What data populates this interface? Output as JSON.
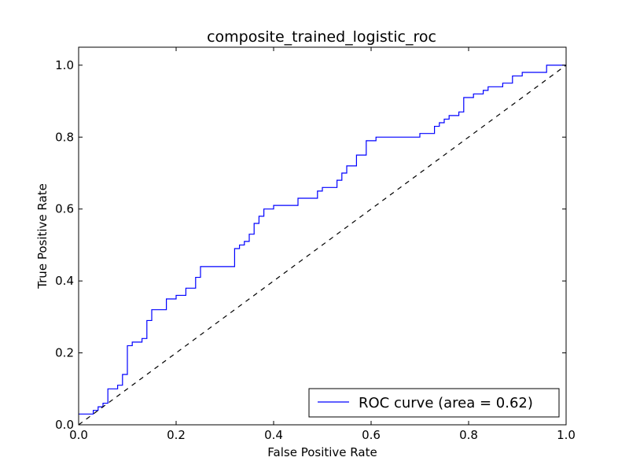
{
  "chart_data": {
    "type": "line",
    "title": "composite_trained_logistic_roc",
    "xlabel": "False Positive Rate",
    "ylabel": "True Positive Rate",
    "xlim": [
      0.0,
      1.0
    ],
    "ylim": [
      0.0,
      1.05
    ],
    "x_ticks": [
      "0.0",
      "0.2",
      "0.4",
      "0.6",
      "0.8",
      "1.0"
    ],
    "y_ticks": [
      "0.0",
      "0.2",
      "0.4",
      "0.6",
      "0.8",
      "1.0"
    ],
    "grid": false,
    "legend_position": "bottom-right",
    "series": [
      {
        "name": "ROC curve (area = 0.62)",
        "color": "#0000ff",
        "style": "solid-step",
        "points": [
          [
            0.0,
            0.03
          ],
          [
            0.03,
            0.03
          ],
          [
            0.03,
            0.04
          ],
          [
            0.04,
            0.04
          ],
          [
            0.04,
            0.05
          ],
          [
            0.05,
            0.05
          ],
          [
            0.05,
            0.06
          ],
          [
            0.06,
            0.06
          ],
          [
            0.06,
            0.1
          ],
          [
            0.08,
            0.1
          ],
          [
            0.08,
            0.11
          ],
          [
            0.09,
            0.11
          ],
          [
            0.09,
            0.14
          ],
          [
            0.1,
            0.14
          ],
          [
            0.1,
            0.22
          ],
          [
            0.11,
            0.22
          ],
          [
            0.11,
            0.23
          ],
          [
            0.13,
            0.23
          ],
          [
            0.13,
            0.24
          ],
          [
            0.14,
            0.24
          ],
          [
            0.14,
            0.29
          ],
          [
            0.15,
            0.29
          ],
          [
            0.15,
            0.32
          ],
          [
            0.18,
            0.32
          ],
          [
            0.18,
            0.35
          ],
          [
            0.2,
            0.35
          ],
          [
            0.2,
            0.36
          ],
          [
            0.22,
            0.36
          ],
          [
            0.22,
            0.38
          ],
          [
            0.24,
            0.38
          ],
          [
            0.24,
            0.41
          ],
          [
            0.25,
            0.41
          ],
          [
            0.25,
            0.44
          ],
          [
            0.32,
            0.44
          ],
          [
            0.32,
            0.49
          ],
          [
            0.33,
            0.49
          ],
          [
            0.33,
            0.5
          ],
          [
            0.34,
            0.5
          ],
          [
            0.34,
            0.51
          ],
          [
            0.35,
            0.51
          ],
          [
            0.35,
            0.53
          ],
          [
            0.36,
            0.53
          ],
          [
            0.36,
            0.56
          ],
          [
            0.37,
            0.56
          ],
          [
            0.37,
            0.58
          ],
          [
            0.38,
            0.58
          ],
          [
            0.38,
            0.6
          ],
          [
            0.4,
            0.6
          ],
          [
            0.4,
            0.61
          ],
          [
            0.45,
            0.61
          ],
          [
            0.45,
            0.63
          ],
          [
            0.49,
            0.63
          ],
          [
            0.49,
            0.65
          ],
          [
            0.5,
            0.65
          ],
          [
            0.5,
            0.66
          ],
          [
            0.53,
            0.66
          ],
          [
            0.53,
            0.68
          ],
          [
            0.54,
            0.68
          ],
          [
            0.54,
            0.7
          ],
          [
            0.55,
            0.7
          ],
          [
            0.55,
            0.72
          ],
          [
            0.57,
            0.72
          ],
          [
            0.57,
            0.75
          ],
          [
            0.59,
            0.75
          ],
          [
            0.59,
            0.79
          ],
          [
            0.61,
            0.79
          ],
          [
            0.61,
            0.8
          ],
          [
            0.7,
            0.8
          ],
          [
            0.7,
            0.81
          ],
          [
            0.73,
            0.81
          ],
          [
            0.73,
            0.83
          ],
          [
            0.74,
            0.83
          ],
          [
            0.74,
            0.84
          ],
          [
            0.75,
            0.84
          ],
          [
            0.75,
            0.85
          ],
          [
            0.76,
            0.85
          ],
          [
            0.76,
            0.86
          ],
          [
            0.78,
            0.86
          ],
          [
            0.78,
            0.87
          ],
          [
            0.79,
            0.87
          ],
          [
            0.79,
            0.91
          ],
          [
            0.81,
            0.91
          ],
          [
            0.81,
            0.92
          ],
          [
            0.83,
            0.92
          ],
          [
            0.83,
            0.93
          ],
          [
            0.84,
            0.93
          ],
          [
            0.84,
            0.94
          ],
          [
            0.87,
            0.94
          ],
          [
            0.87,
            0.95
          ],
          [
            0.89,
            0.95
          ],
          [
            0.89,
            0.97
          ],
          [
            0.91,
            0.97
          ],
          [
            0.91,
            0.98
          ],
          [
            0.96,
            0.98
          ],
          [
            0.96,
            1.0
          ],
          [
            1.0,
            1.0
          ]
        ]
      },
      {
        "name": "",
        "color": "#000000",
        "style": "dashed",
        "points": [
          [
            0.0,
            0.0
          ],
          [
            1.0,
            1.0
          ]
        ]
      }
    ]
  }
}
